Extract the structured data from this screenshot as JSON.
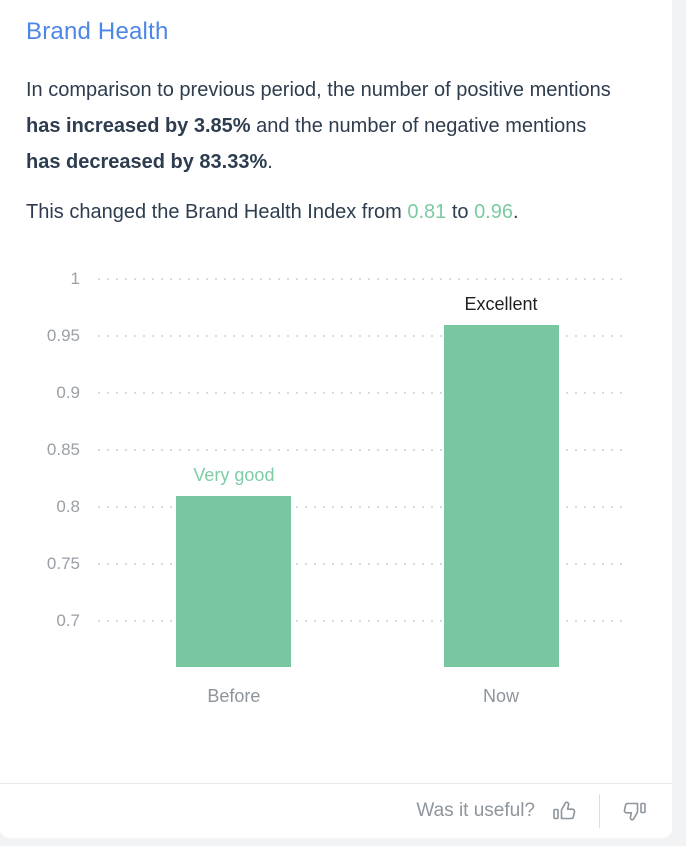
{
  "card": {
    "title": "Brand Health",
    "paragraph1": {
      "segments": [
        {
          "text": "In comparison to previous period, the number of positive mentions ",
          "bold": false
        },
        {
          "text": "has increased by 3.85%",
          "bold": true
        },
        {
          "text": " and the number of negative mentions ",
          "bold": false
        },
        {
          "text": "has decreased by 83.33%",
          "bold": true
        },
        {
          "text": ".",
          "bold": false
        }
      ]
    },
    "paragraph2": {
      "segments": [
        {
          "text": "This changed the Brand Health Index from ",
          "bold": false
        },
        {
          "text": "0.81",
          "bold": false,
          "color": "#7ccaa2"
        },
        {
          "text": " to ",
          "bold": false
        },
        {
          "text": "0.96",
          "bold": false,
          "color": "#7ccaa2"
        },
        {
          "text": ".",
          "bold": false
        }
      ]
    },
    "footer": {
      "question": "Was it useful?",
      "icons": [
        "thumbs-up-icon",
        "thumbs-down-icon"
      ]
    }
  },
  "chart_data": {
    "type": "bar",
    "title": "",
    "xlabel": "",
    "ylabel": "",
    "categories": [
      "Before",
      "Now"
    ],
    "values": [
      0.81,
      0.96
    ],
    "bar_labels": [
      {
        "text": "Very good",
        "color": "#7ecda6"
      },
      {
        "text": "Excellent",
        "color": "#1f1f1f"
      }
    ],
    "bar_color": "#79c7a0",
    "yticks": [
      1,
      0.95,
      0.9,
      0.85,
      0.8,
      0.75,
      0.7
    ],
    "ytick_labels": [
      "1",
      "0.95",
      "0.9",
      "0.85",
      "0.8",
      "0.75",
      "0.7"
    ],
    "ylim": [
      0.66,
      1.013
    ],
    "grid": "dotted-horizontal",
    "legend": "none"
  },
  "colors": {
    "accent_blue": "#4c86e6",
    "green_text": "#7ccaa2",
    "bar_green": "#79c7a0",
    "text_dark": "#2d3c4e",
    "axis_gray": "#9aa0a5",
    "category_gray": "#8d949b",
    "footer_gray": "#8d959d",
    "page_bg": "#f2f3f5",
    "card_bg": "#ffffff"
  }
}
